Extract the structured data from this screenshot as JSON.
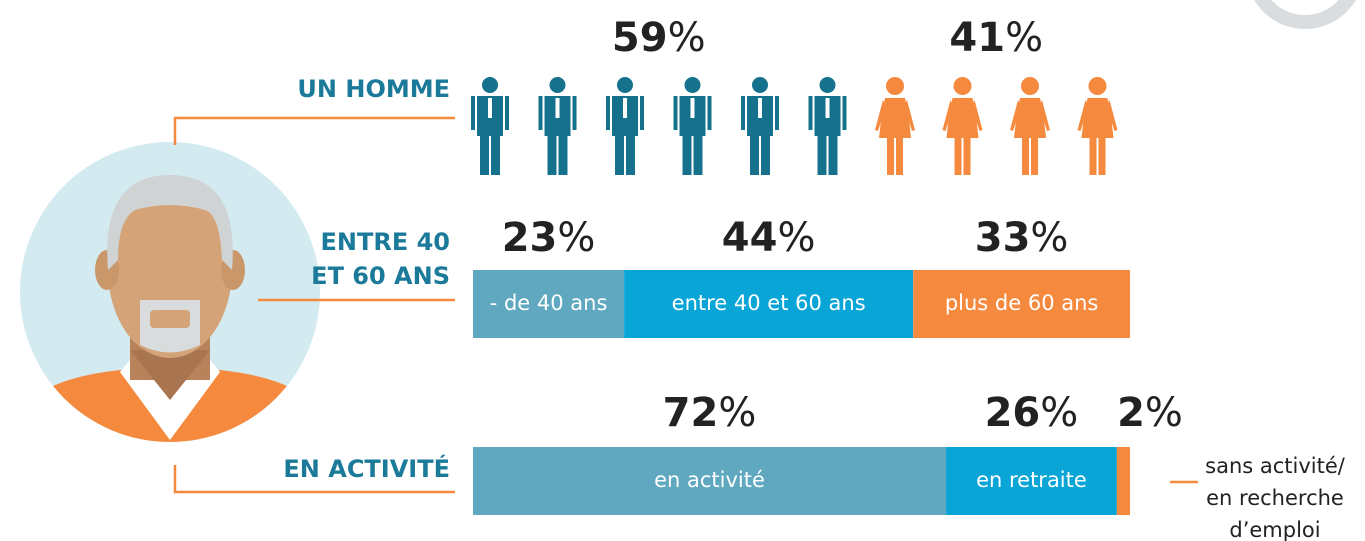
{
  "unit": "%",
  "rows": [
    {
      "label": [
        "UN HOMME"
      ],
      "style": "icons",
      "segments": [
        {
          "value": 59,
          "color": "#16728c",
          "icon": "man",
          "icon_count": 6
        },
        {
          "value": 41,
          "color": "#f58a3f",
          "icon": "woman",
          "icon_count": 4
        }
      ]
    },
    {
      "label": [
        "ENTRE 40",
        "ET 60 ANS"
      ],
      "style": "bar",
      "segments": [
        {
          "value": 23,
          "color": "#5fa8bf",
          "label": "- de 40 ans"
        },
        {
          "value": 44,
          "color": "#08a5d6",
          "label": "entre 40 et 60 ans"
        },
        {
          "value": 33,
          "color": "#f58a3f",
          "label": "plus de 60 ans"
        }
      ]
    },
    {
      "label": [
        "EN ACTIVITÉ"
      ],
      "style": "bar",
      "segments": [
        {
          "value": 72,
          "color": "#5fa8bf",
          "label": "en activité"
        },
        {
          "value": 26,
          "color": "#08a5d6",
          "label": "en retraite"
        },
        {
          "value": 2,
          "color": "#f58a3f",
          "label": [
            "sans activité/",
            "en recherche",
            "d’emploi"
          ]
        }
      ]
    }
  ]
}
